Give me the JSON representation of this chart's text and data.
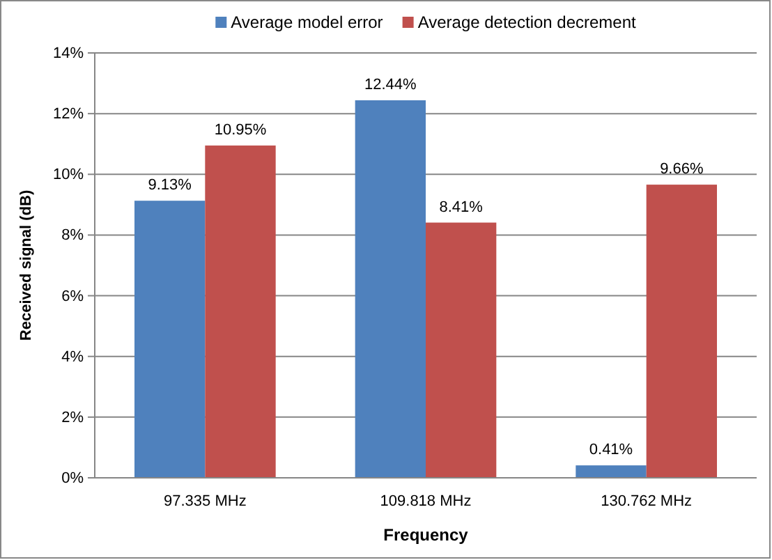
{
  "chart_data": {
    "type": "bar",
    "xlabel": "Frequency",
    "ylabel": "Received signal (dB)",
    "categories": [
      "97.335 MHz",
      "109.818 MHz",
      "130.762 MHz"
    ],
    "series": [
      {
        "name": "Average model error",
        "color": "#4f81bd",
        "values": [
          9.13,
          12.44,
          0.41
        ],
        "value_labels": [
          "9.13%",
          "12.44%",
          "0.41%"
        ]
      },
      {
        "name": "Average detection decrement",
        "color": "#c0504d",
        "values": [
          10.95,
          8.41,
          9.66
        ],
        "value_labels": [
          "10.95%",
          "8.41%",
          "9.66%"
        ]
      }
    ],
    "ylim": [
      0,
      14
    ],
    "yticks": [
      {
        "value": 0,
        "label": "0%"
      },
      {
        "value": 2,
        "label": "2%"
      },
      {
        "value": 4,
        "label": "4%"
      },
      {
        "value": 6,
        "label": "6%"
      },
      {
        "value": 8,
        "label": "8%"
      },
      {
        "value": 10,
        "label": "10%"
      },
      {
        "value": 12,
        "label": "12%"
      },
      {
        "value": 14,
        "label": "14%"
      }
    ],
    "grid": "y",
    "legend": "top"
  }
}
